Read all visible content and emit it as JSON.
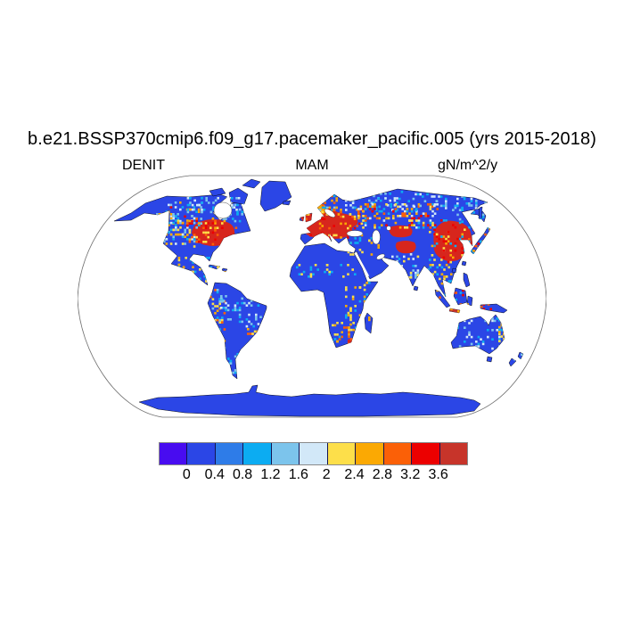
{
  "title": "b.e21.BSSP370cmip6.f09_g17.pacemaker_pacific.005 (yrs 2015-2018)",
  "header": {
    "variable_label": "DENIT",
    "season_label": "MAM",
    "units_label": "gN/m^2/y"
  },
  "colorbar": {
    "tick_labels": [
      "0",
      "0.4",
      "0.8",
      "1.2",
      "1.6",
      "2",
      "2.4",
      "2.8",
      "3.2",
      "3.6"
    ],
    "colors": [
      "#480cf0",
      "#2b46e6",
      "#2e7ce8",
      "#0cacf2",
      "#7cc4ec",
      "#d2e8f8",
      "#fddf4a",
      "#fba903",
      "#fb6007",
      "#ec0000",
      "#c7342a"
    ],
    "outer_border_color": "#8a8a8a",
    "divider_color": "#141452"
  },
  "map": {
    "ocean_color": "#ffffff",
    "land_base_color": "#2b46e6",
    "coastline_color": "#000000",
    "outline_color": "#6f6f6f",
    "hotspot_fill": "#d7261d",
    "lake_outline_color": "#222222"
  },
  "chart_data": {
    "type": "heatmap",
    "title": "b.e21.BSSP370cmip6.f09_g17.pacemaker_pacific.005 (yrs 2015-2018)",
    "variable": "DENIT",
    "season": "MAM",
    "units": "gN/m^2/y",
    "projection": "robinson-global",
    "colorbar_levels": [
      0,
      0.4,
      0.8,
      1.2,
      1.6,
      2,
      2.4,
      2.8,
      3.2,
      3.6
    ],
    "palette": [
      "#480cf0",
      "#2b46e6",
      "#2e7ce8",
      "#0cacf2",
      "#7cc4ec",
      "#d2e8f8",
      "#fddf4a",
      "#fba903",
      "#fb6007",
      "#ec0000",
      "#c7342a"
    ],
    "regions": [
      {
        "name": "Midwestern and eastern United States",
        "approx_value": "3.2 to >3.6 (solid red patch)"
      },
      {
        "name": "Western and central Europe incl. UK",
        "approx_value": "3.2 to >3.6 (solid red patch)"
      },
      {
        "name": "Eastern China",
        "approx_value": "3.2 to >3.6 (solid red patch)"
      },
      {
        "name": "Kazakhstan - southern Siberia band",
        "approx_value": "1.6-3.6 mottled yellow/orange/red"
      },
      {
        "name": "Korean Peninsula and Japan",
        "approx_value": "2.4 to >3.6 orange-red"
      },
      {
        "name": "Java, Indonesia",
        "approx_value": ">3.6 dark red strip"
      },
      {
        "name": "Eastern South Africa",
        "approx_value": "2.4-3.6 orange-red spots"
      },
      {
        "name": "Andes and southeastern South America",
        "approx_value": "1.2-3.2 scattered cyan-orange spots"
      },
      {
        "name": "Western North America",
        "approx_value": "0.4-1.6 scattered light blues"
      },
      {
        "name": "India and Southeast Asia",
        "approx_value": "0.4-1.6 with scattered coastal 2+ spots"
      },
      {
        "name": "Most other land",
        "approx_value": "0-0.8 (blue)"
      },
      {
        "name": "Greenland, Antarctica, Sahara, central Australia",
        "approx_value": "0-0.4 (uniform blue)"
      },
      {
        "name": "Oceans",
        "approx_value": "no data (white)"
      }
    ]
  }
}
